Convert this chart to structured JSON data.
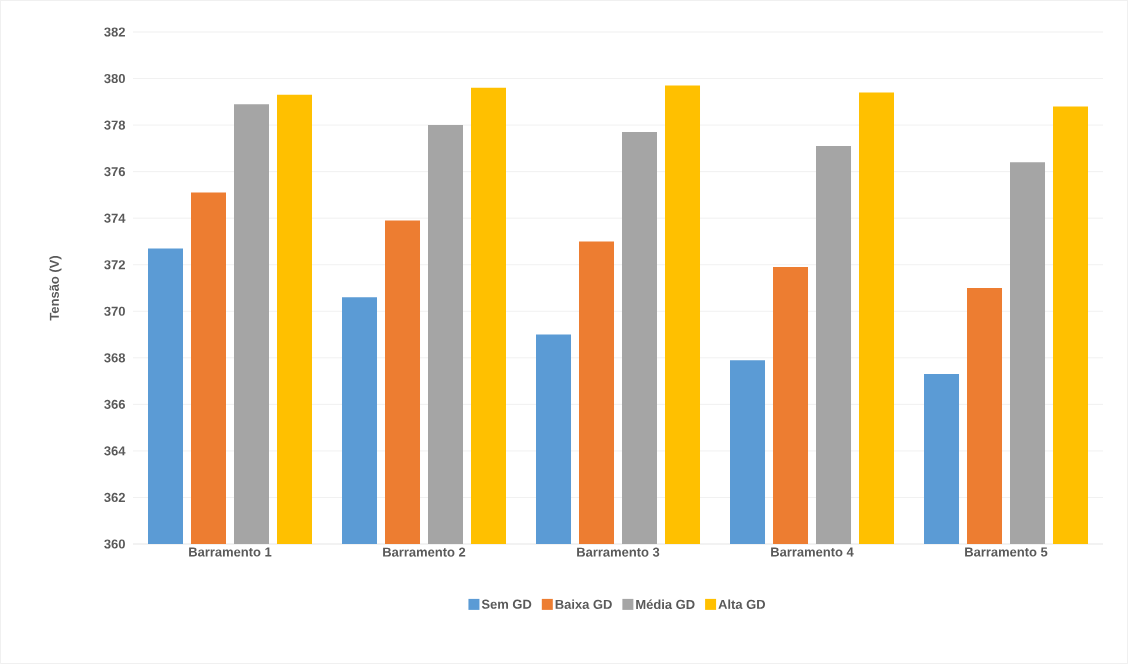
{
  "chart_data": {
    "type": "bar",
    "ylabel": "Tensão (V)",
    "categories": [
      "Barramento 1",
      "Barramento 2",
      "Barramento 3",
      "Barramento 4",
      "Barramento 5"
    ],
    "series": [
      {
        "name": "Sem GD",
        "color": "#5b9bd5",
        "values": [
          372.7,
          370.6,
          369.0,
          367.9,
          367.3
        ]
      },
      {
        "name": "Baixa GD",
        "color": "#ed7d31",
        "values": [
          375.1,
          373.9,
          373.0,
          371.9,
          371.0
        ]
      },
      {
        "name": "Média GD",
        "color": "#a5a5a5",
        "values": [
          378.9,
          378.0,
          377.7,
          377.1,
          376.4
        ]
      },
      {
        "name": "Alta GD",
        "color": "#ffc000",
        "values": [
          379.3,
          379.6,
          379.7,
          379.4,
          378.8
        ]
      }
    ],
    "ylim": [
      360,
      382
    ],
    "yticks": [
      360,
      362,
      364,
      366,
      368,
      370,
      372,
      374,
      376,
      378,
      380,
      382
    ],
    "grid": "y",
    "legend": "bottom"
  }
}
